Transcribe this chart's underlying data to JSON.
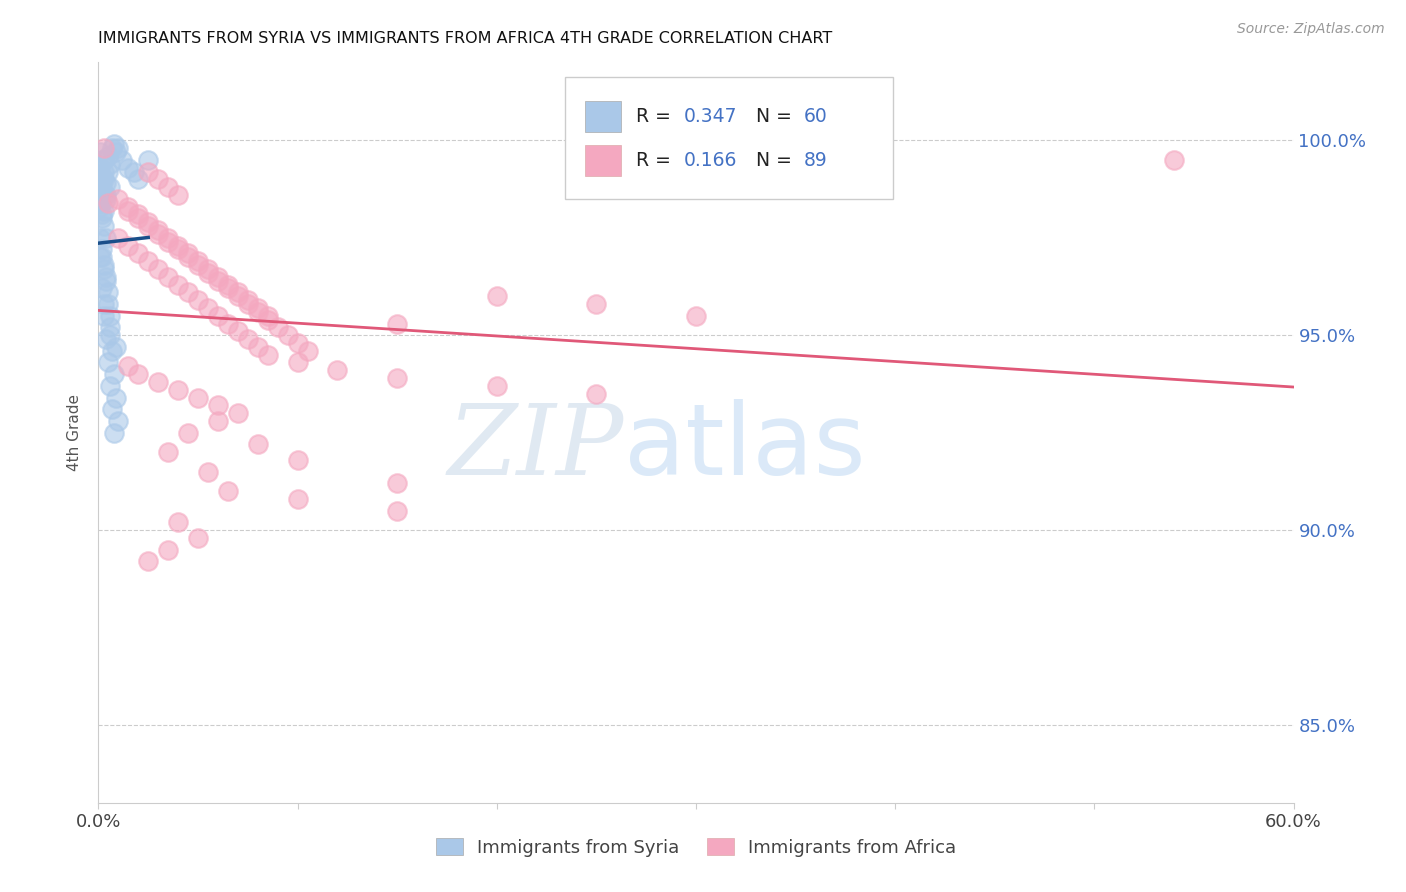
{
  "title": "IMMIGRANTS FROM SYRIA VS IMMIGRANTS FROM AFRICA 4TH GRADE CORRELATION CHART",
  "source": "Source: ZipAtlas.com",
  "ylabel": "4th Grade",
  "ytick_labels": [
    "85.0%",
    "90.0%",
    "95.0%",
    "100.0%"
  ],
  "ytick_values": [
    85.0,
    90.0,
    95.0,
    100.0
  ],
  "xlim": [
    0.0,
    60.0
  ],
  "ylim": [
    83.0,
    102.0
  ],
  "legend_label_syria": "Immigrants from Syria",
  "legend_label_africa": "Immigrants from Africa",
  "color_syria": "#aac8e8",
  "color_africa": "#f4a8c0",
  "line_color_syria": "#1a4f8a",
  "line_color_africa": "#e05878",
  "legend_R_color": "#4472c4",
  "legend_N_color": "#4472c4",
  "watermark_zip": "ZIP",
  "watermark_atlas": "atlas",
  "syria_points": [
    [
      0.1,
      99.7
    ],
    [
      0.2,
      99.5
    ],
    [
      0.1,
      99.3
    ],
    [
      0.3,
      99.0
    ],
    [
      0.2,
      98.8
    ],
    [
      0.4,
      98.6
    ],
    [
      0.1,
      98.3
    ],
    [
      0.2,
      98.0
    ],
    [
      0.3,
      99.5
    ],
    [
      0.5,
      99.2
    ],
    [
      0.2,
      98.7
    ],
    [
      0.1,
      99.1
    ],
    [
      0.4,
      98.5
    ],
    [
      0.3,
      98.2
    ],
    [
      0.6,
      98.8
    ],
    [
      0.2,
      99.0
    ],
    [
      0.1,
      98.4
    ],
    [
      0.5,
      99.6
    ],
    [
      0.3,
      99.2
    ],
    [
      0.4,
      98.9
    ],
    [
      0.7,
      99.8
    ],
    [
      0.2,
      98.1
    ],
    [
      0.6,
      99.4
    ],
    [
      0.3,
      98.6
    ],
    [
      0.8,
      99.9
    ],
    [
      0.9,
      99.7
    ],
    [
      1.0,
      99.8
    ],
    [
      1.2,
      99.5
    ],
    [
      1.5,
      99.3
    ],
    [
      2.0,
      99.0
    ],
    [
      0.1,
      97.5
    ],
    [
      0.2,
      97.2
    ],
    [
      0.1,
      97.0
    ],
    [
      0.3,
      96.8
    ],
    [
      0.4,
      96.5
    ],
    [
      0.2,
      96.2
    ],
    [
      0.5,
      95.8
    ],
    [
      0.3,
      95.5
    ],
    [
      0.6,
      95.2
    ],
    [
      0.4,
      94.9
    ],
    [
      0.7,
      94.6
    ],
    [
      0.5,
      94.3
    ],
    [
      0.8,
      94.0
    ],
    [
      0.6,
      93.7
    ],
    [
      0.9,
      93.4
    ],
    [
      0.7,
      93.1
    ],
    [
      1.0,
      92.8
    ],
    [
      0.8,
      92.5
    ],
    [
      0.3,
      97.8
    ],
    [
      0.4,
      97.5
    ],
    [
      2.5,
      99.5
    ],
    [
      1.8,
      99.2
    ],
    [
      0.6,
      95.0
    ],
    [
      0.9,
      94.7
    ],
    [
      0.2,
      97.0
    ],
    [
      0.3,
      96.7
    ],
    [
      0.4,
      96.4
    ],
    [
      0.5,
      96.1
    ],
    [
      0.3,
      95.8
    ],
    [
      0.6,
      95.5
    ]
  ],
  "africa_points": [
    [
      0.3,
      99.8
    ],
    [
      54.0,
      99.5
    ],
    [
      2.5,
      99.2
    ],
    [
      3.0,
      99.0
    ],
    [
      3.5,
      98.8
    ],
    [
      4.0,
      98.6
    ],
    [
      0.5,
      98.4
    ],
    [
      1.5,
      98.2
    ],
    [
      2.0,
      98.0
    ],
    [
      2.5,
      97.8
    ],
    [
      3.0,
      97.6
    ],
    [
      3.5,
      97.4
    ],
    [
      4.0,
      97.2
    ],
    [
      4.5,
      97.0
    ],
    [
      5.0,
      96.8
    ],
    [
      5.5,
      96.6
    ],
    [
      6.0,
      96.4
    ],
    [
      6.5,
      96.2
    ],
    [
      7.0,
      96.0
    ],
    [
      7.5,
      95.8
    ],
    [
      8.0,
      95.6
    ],
    [
      8.5,
      95.4
    ],
    [
      9.0,
      95.2
    ],
    [
      9.5,
      95.0
    ],
    [
      10.0,
      94.8
    ],
    [
      10.5,
      94.6
    ],
    [
      1.0,
      98.5
    ],
    [
      1.5,
      98.3
    ],
    [
      2.0,
      98.1
    ],
    [
      2.5,
      97.9
    ],
    [
      3.0,
      97.7
    ],
    [
      3.5,
      97.5
    ],
    [
      4.0,
      97.3
    ],
    [
      4.5,
      97.1
    ],
    [
      5.0,
      96.9
    ],
    [
      5.5,
      96.7
    ],
    [
      6.0,
      96.5
    ],
    [
      6.5,
      96.3
    ],
    [
      7.0,
      96.1
    ],
    [
      7.5,
      95.9
    ],
    [
      8.0,
      95.7
    ],
    [
      8.5,
      95.5
    ],
    [
      1.0,
      97.5
    ],
    [
      1.5,
      97.3
    ],
    [
      2.0,
      97.1
    ],
    [
      2.5,
      96.9
    ],
    [
      3.0,
      96.7
    ],
    [
      3.5,
      96.5
    ],
    [
      4.0,
      96.3
    ],
    [
      4.5,
      96.1
    ],
    [
      5.0,
      95.9
    ],
    [
      5.5,
      95.7
    ],
    [
      6.0,
      95.5
    ],
    [
      6.5,
      95.3
    ],
    [
      7.0,
      95.1
    ],
    [
      7.5,
      94.9
    ],
    [
      8.0,
      94.7
    ],
    [
      8.5,
      94.5
    ],
    [
      10.0,
      94.3
    ],
    [
      12.0,
      94.1
    ],
    [
      15.0,
      93.9
    ],
    [
      20.0,
      93.7
    ],
    [
      25.0,
      93.5
    ],
    [
      1.5,
      94.2
    ],
    [
      2.0,
      94.0
    ],
    [
      3.0,
      93.8
    ],
    [
      4.0,
      93.6
    ],
    [
      5.0,
      93.4
    ],
    [
      6.0,
      93.2
    ],
    [
      7.0,
      93.0
    ],
    [
      4.5,
      92.5
    ],
    [
      3.5,
      92.0
    ],
    [
      5.5,
      91.5
    ],
    [
      6.5,
      91.0
    ],
    [
      10.0,
      91.8
    ],
    [
      15.0,
      91.2
    ],
    [
      10.0,
      90.8
    ],
    [
      15.0,
      90.5
    ],
    [
      4.0,
      90.2
    ],
    [
      5.0,
      89.8
    ],
    [
      3.5,
      89.5
    ],
    [
      2.5,
      89.2
    ],
    [
      8.0,
      92.2
    ],
    [
      6.0,
      92.8
    ],
    [
      20.0,
      96.0
    ],
    [
      25.0,
      95.8
    ],
    [
      30.0,
      95.5
    ],
    [
      15.0,
      95.3
    ]
  ]
}
